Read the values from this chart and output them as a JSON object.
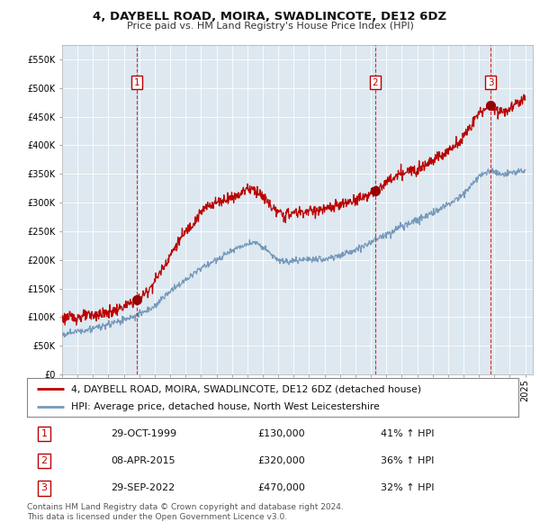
{
  "title": "4, DAYBELL ROAD, MOIRA, SWADLINCOTE, DE12 6DZ",
  "subtitle": "Price paid vs. HM Land Registry's House Price Index (HPI)",
  "ylabel_ticks": [
    0,
    50000,
    100000,
    150000,
    200000,
    250000,
    300000,
    350000,
    400000,
    450000,
    500000,
    550000
  ],
  "ylim": [
    0,
    575000
  ],
  "xlim_start": 1995.0,
  "xlim_end": 2025.5,
  "sale_dates": [
    1999.83,
    2015.27,
    2022.75
  ],
  "sale_prices": [
    130000,
    320000,
    470000
  ],
  "sale_labels": [
    "1",
    "2",
    "3"
  ],
  "sale_label_dates": [
    "29-OCT-1999",
    "08-APR-2015",
    "29-SEP-2022"
  ],
  "sale_label_prices": [
    "£130,000",
    "£320,000",
    "£470,000"
  ],
  "sale_label_hpi": [
    "41% ↑ HPI",
    "36% ↑ HPI",
    "32% ↑ HPI"
  ],
  "red_line_color": "#bb0000",
  "blue_line_color": "#7799bb",
  "chart_bg_color": "#dde8f0",
  "dashed_vline_color": "#cc0000",
  "background_color": "#ffffff",
  "grid_color": "#ffffff",
  "legend_label_red": "4, DAYBELL ROAD, MOIRA, SWADLINCOTE, DE12 6DZ (detached house)",
  "legend_label_blue": "HPI: Average price, detached house, North West Leicestershire",
  "footer_line1": "Contains HM Land Registry data © Crown copyright and database right 2024.",
  "footer_line2": "This data is licensed under the Open Government Licence v3.0.",
  "red_keypoints_x": [
    1995.0,
    1996.0,
    1997.0,
    1998.0,
    1999.0,
    1999.83,
    2000.5,
    2001.5,
    2002.5,
    2003.5,
    2004.5,
    2005.5,
    2006.5,
    2007.0,
    2007.5,
    2008.0,
    2008.5,
    2009.0,
    2009.5,
    2010.0,
    2011.0,
    2012.0,
    2013.0,
    2014.0,
    2015.27,
    2015.5,
    2016.0,
    2017.0,
    2018.0,
    2019.0,
    2020.0,
    2021.0,
    2021.5,
    2022.0,
    2022.75,
    2023.0,
    2023.5,
    2024.0,
    2024.5,
    2025.0
  ],
  "red_keypoints_y": [
    98000,
    100000,
    103000,
    108000,
    118000,
    130000,
    145000,
    185000,
    230000,
    265000,
    295000,
    305000,
    315000,
    325000,
    322000,
    310000,
    295000,
    282000,
    278000,
    282000,
    285000,
    288000,
    295000,
    305000,
    320000,
    325000,
    335000,
    350000,
    360000,
    375000,
    390000,
    415000,
    435000,
    455000,
    470000,
    465000,
    460000,
    465000,
    475000,
    485000
  ],
  "blue_keypoints_x": [
    1995.0,
    1996.0,
    1997.0,
    1998.0,
    1999.0,
    2000.0,
    2001.0,
    2002.0,
    2003.0,
    2004.0,
    2005.0,
    2006.0,
    2007.0,
    2007.5,
    2008.0,
    2008.5,
    2009.0,
    2009.5,
    2010.0,
    2011.0,
    2012.0,
    2013.0,
    2014.0,
    2015.0,
    2015.27,
    2016.0,
    2017.0,
    2018.0,
    2019.0,
    2020.0,
    2021.0,
    2021.5,
    2022.0,
    2022.75,
    2023.0,
    2023.5,
    2024.0,
    2024.5,
    2025.0
  ],
  "blue_keypoints_y": [
    70000,
    75000,
    80000,
    87000,
    95000,
    105000,
    120000,
    145000,
    165000,
    185000,
    200000,
    215000,
    228000,
    230000,
    222000,
    210000,
    200000,
    196000,
    198000,
    200000,
    202000,
    208000,
    218000,
    230000,
    235000,
    245000,
    258000,
    270000,
    283000,
    298000,
    315000,
    330000,
    345000,
    355000,
    353000,
    350000,
    352000,
    353000,
    355000
  ]
}
